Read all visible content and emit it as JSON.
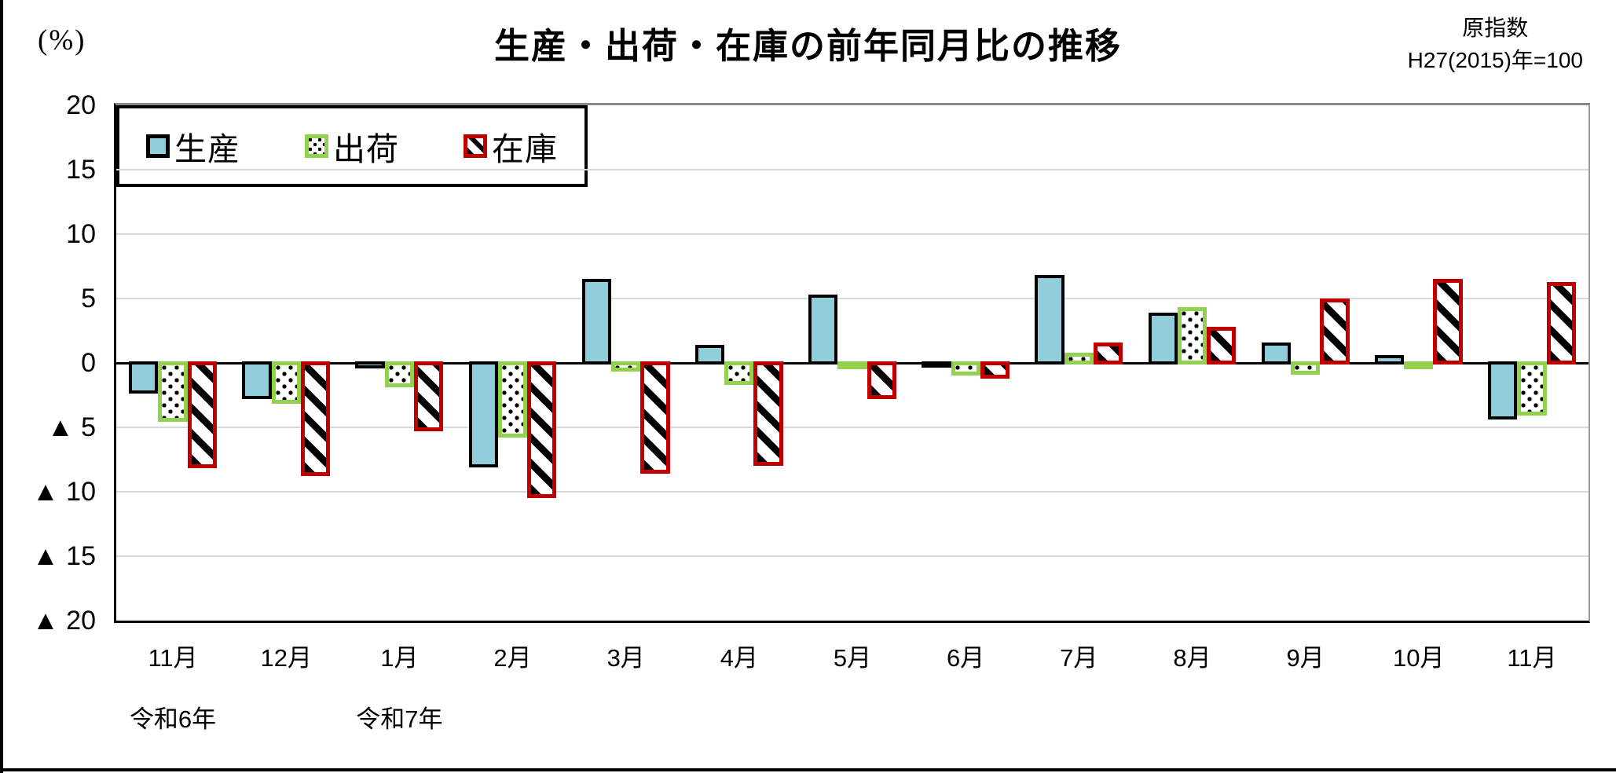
{
  "page": {
    "percent_label": "(%)",
    "title": "生産・出荷・在庫の前年同月比の推移",
    "index_note_line1": "原指数",
    "index_note_line2": "H27(2015)年=100"
  },
  "colors": {
    "production_fill": "#92CDDC",
    "production_border": "#000000",
    "shipment_border": "#92D050",
    "inventory_border": "#C00000",
    "gridline": "#D9D9D9",
    "axis": "#000000"
  },
  "chart_data": {
    "type": "bar",
    "title": "生産・出荷・在庫の前年同月比の推移",
    "unit": "%",
    "ylabel": "(%)",
    "ylim": [
      -20,
      20
    ],
    "ytick_interval": 5,
    "grid": true,
    "legend_position": "top-right",
    "yticks_display": [
      "20",
      "15",
      "10",
      "5",
      "0",
      "▲ 5",
      "▲ 10",
      "▲ 15",
      "▲ 20"
    ],
    "ytick_values": [
      20,
      15,
      10,
      5,
      0,
      -5,
      -10,
      -15,
      -20
    ],
    "categories": [
      "11月",
      "12月",
      "1月",
      "2月",
      "3月",
      "4月",
      "5月",
      "6月",
      "7月",
      "8月",
      "9月",
      "10月",
      "11月"
    ],
    "era_labels": [
      {
        "text": "令和6年",
        "category_index": 0
      },
      {
        "text": "令和7年",
        "category_index": 2
      }
    ],
    "series": [
      {
        "name": "生産",
        "style": "solid",
        "fill": "#92CDDC",
        "border": "#000000",
        "values": [
          -2.4,
          -2.8,
          -0.4,
          -8.1,
          6.5,
          1.4,
          5.3,
          -0.3,
          6.8,
          3.9,
          1.6,
          0.6,
          -4.4
        ]
      },
      {
        "name": "出荷",
        "style": "dotted",
        "fill": "#FFFFFF",
        "border": "#92D050",
        "values": [
          -4.6,
          -3.2,
          -1.9,
          -5.8,
          -0.7,
          -1.7,
          -0.5,
          -1.0,
          0.8,
          4.3,
          -0.9,
          -0.5,
          -4.1
        ]
      },
      {
        "name": "在庫",
        "style": "diagonal-hatch",
        "fill": "#FFFFFF",
        "border": "#C00000",
        "values": [
          -8.2,
          -8.8,
          -5.3,
          -10.5,
          -8.6,
          -8.0,
          -2.8,
          -1.2,
          1.6,
          2.8,
          5.0,
          6.5,
          6.3
        ]
      }
    ]
  }
}
